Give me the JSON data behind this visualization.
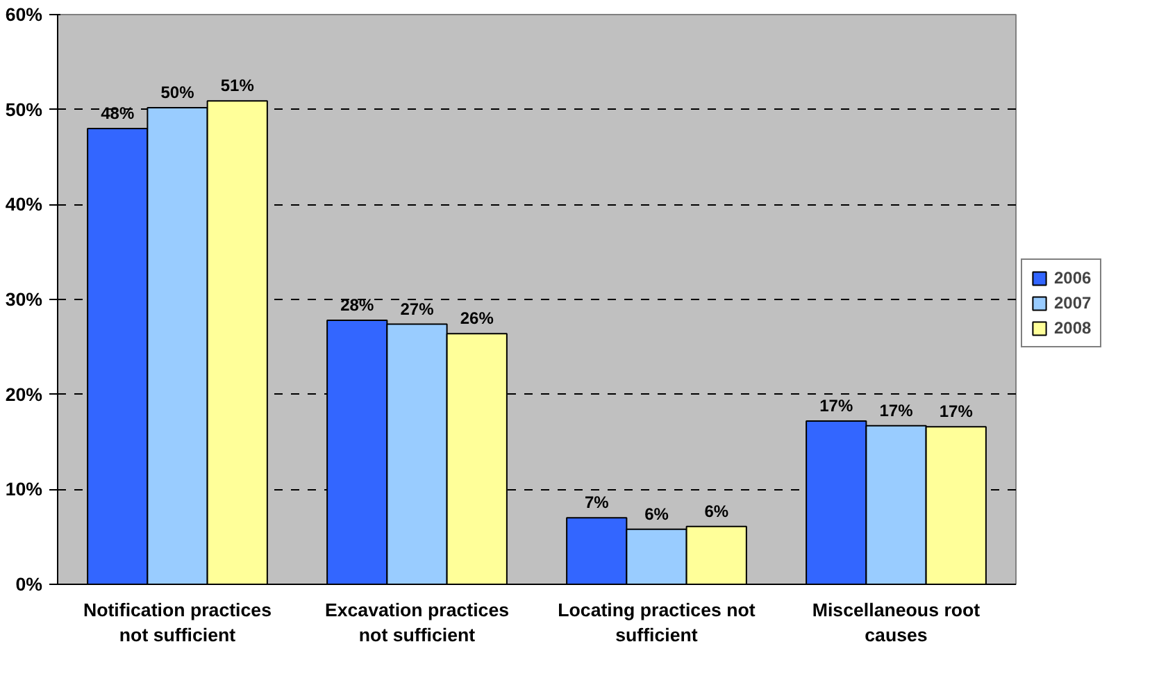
{
  "chart_data": {
    "type": "bar",
    "categories": [
      "Notification practices\nnot sufficient",
      "Excavation practices\nnot sufficient",
      "Locating practices not\nsufficient",
      "Miscellaneous root\ncauses"
    ],
    "series": [
      {
        "name": "2006",
        "color": "#3366ff",
        "values": [
          48.0,
          27.8,
          7.0,
          17.2
        ],
        "value_labels": [
          "48%",
          "28%",
          "7%",
          "17%"
        ]
      },
      {
        "name": "2007",
        "color": "#99ccff",
        "values": [
          50.2,
          27.4,
          5.8,
          16.7
        ],
        "value_labels": [
          "50%",
          "27%",
          "6%",
          "17%"
        ]
      },
      {
        "name": "2008",
        "color": "#ffff99",
        "values": [
          50.9,
          26.4,
          6.1,
          16.6
        ],
        "value_labels": [
          "51%",
          "26%",
          "6%",
          "17%"
        ]
      }
    ],
    "ylim": [
      0,
      60
    ],
    "yticks": [
      {
        "value": 0,
        "label": "0%"
      },
      {
        "value": 10,
        "label": "10%"
      },
      {
        "value": 20,
        "label": "20%"
      },
      {
        "value": 30,
        "label": "30%"
      },
      {
        "value": 40,
        "label": "40%"
      },
      {
        "value": 50,
        "label": "50%"
      },
      {
        "value": 60,
        "label": "60%"
      }
    ],
    "grid": "y",
    "legend": "right"
  }
}
